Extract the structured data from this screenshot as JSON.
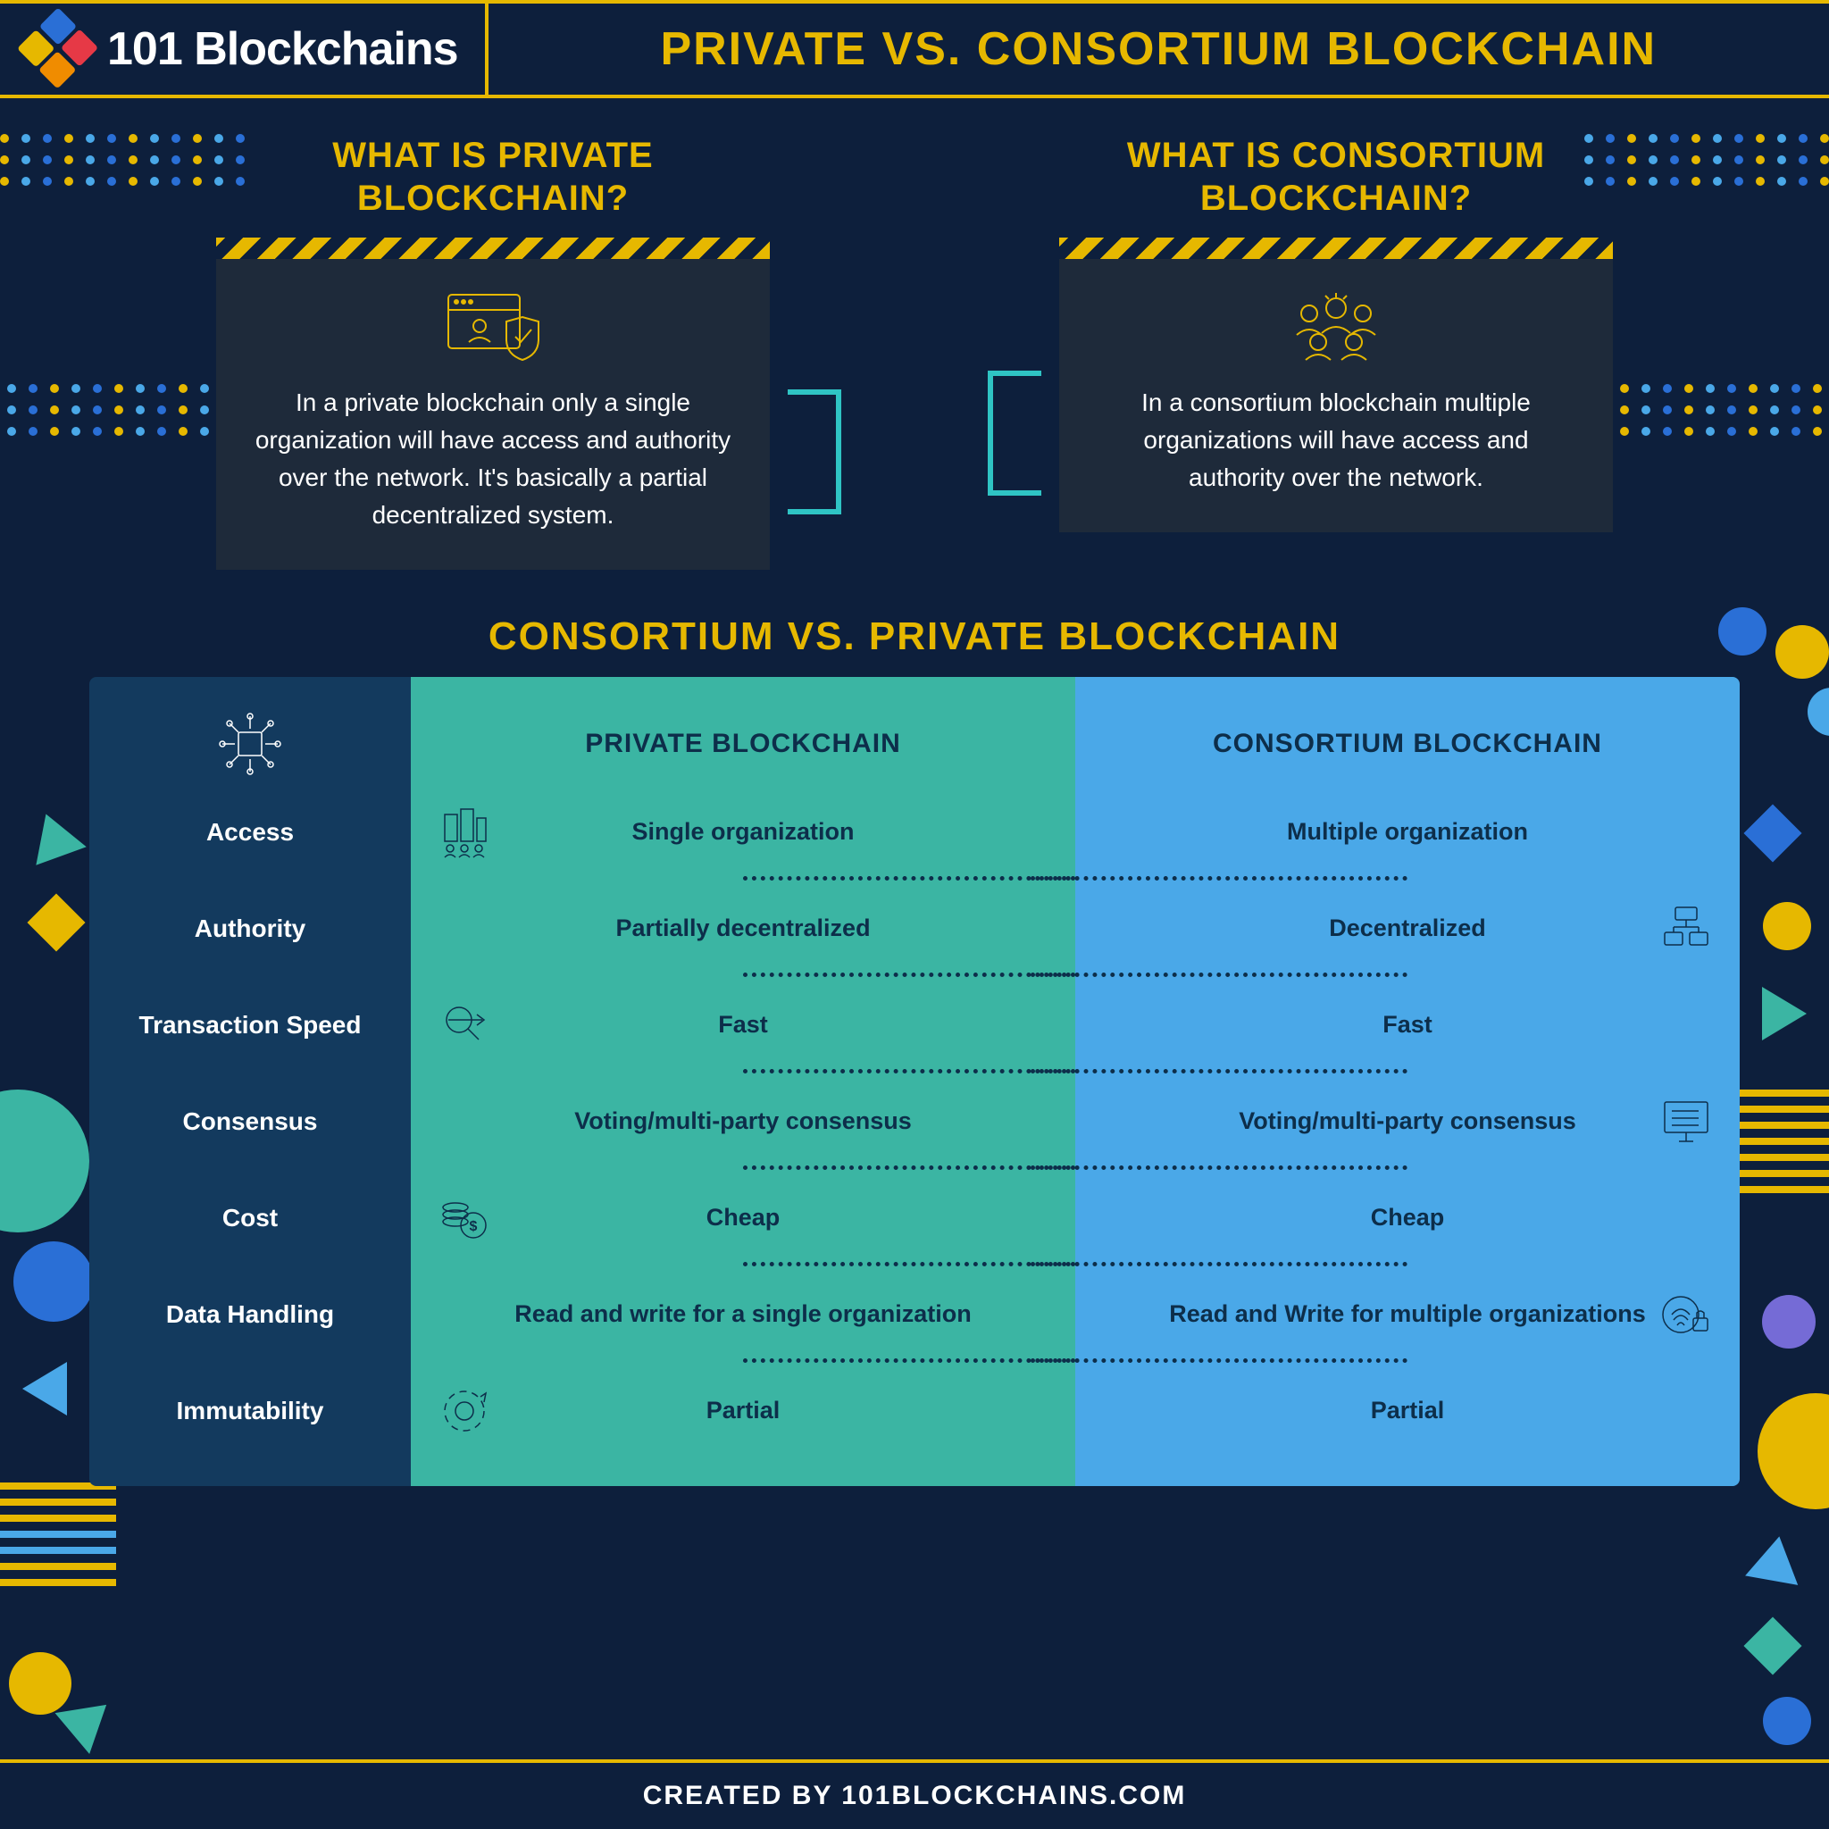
{
  "colors": {
    "bg": "#0d1f3c",
    "gold": "#e6b800",
    "darkbox": "#1e2a3a",
    "teal": "#2fc4c4",
    "navy": "#133a5e",
    "col_private": "#3bb5a3",
    "col_consortium": "#4aa8e8",
    "text_dark": "#0d2e4a",
    "white": "#ffffff",
    "blue_accent": "#2a6fd6",
    "light_blue": "#4aa8e8"
  },
  "header": {
    "logo_text": "101 Blockchains",
    "title": "PRIVATE VS. CONSORTIUM BLOCKCHAIN"
  },
  "definitions": {
    "private": {
      "title": "WHAT IS PRIVATE BLOCKCHAIN?",
      "text": "In a private blockchain only a single organization will have access and authority over the network. It's basically a partial decentralized system."
    },
    "consortium": {
      "title": "WHAT IS CONSORTIUM BLOCKCHAIN?",
      "text": "In a consortium blockchain multiple organizations will have access and authority over the network."
    }
  },
  "comparison": {
    "title": "CONSORTIUM VS. PRIVATE BLOCKCHAIN",
    "col_headers": {
      "private": "PRIVATE BLOCKCHAIN",
      "consortium": "CONSORTIUM BLOCKCHAIN"
    },
    "attributes": [
      "Access",
      "Authority",
      "Transaction Speed",
      "Consensus",
      "Cost",
      "Data Handling",
      "Immutability"
    ],
    "private_values": [
      "Single organization",
      "Partially decentralized",
      "Fast",
      "Voting/multi-party consensus",
      "Cheap",
      "Read and write for a single organization",
      "Partial"
    ],
    "consortium_values": [
      "Multiple organization",
      "Decentralized",
      "Fast",
      "Voting/multi-party consensus",
      "Cheap",
      "Read and Write for multiple organizations",
      "Partial"
    ]
  },
  "footer": "CREATED BY 101BLOCKCHAINS.COM"
}
